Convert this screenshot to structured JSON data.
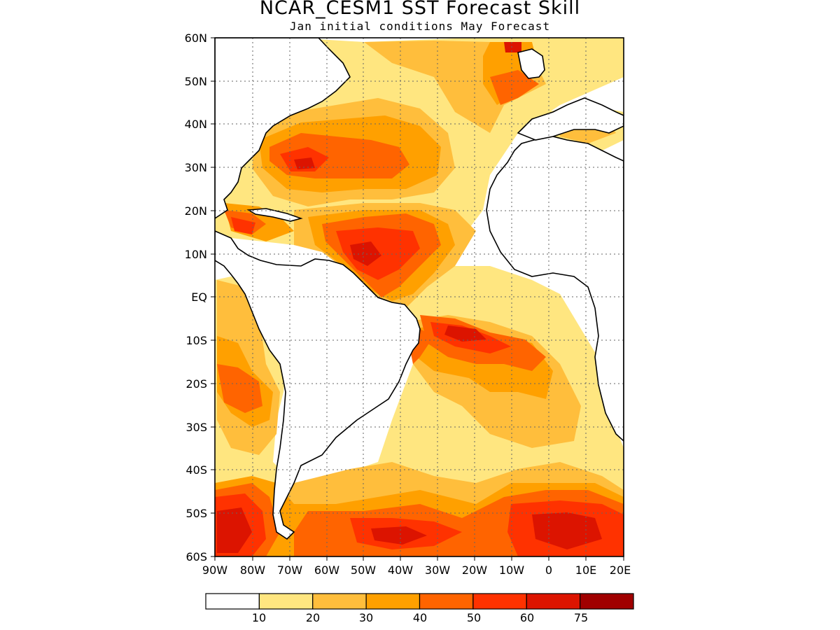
{
  "title": "NCAR_CESM1 SST Forecast Skill",
  "subtitle": "Jan initial conditions   May Forecast",
  "map": {
    "lon_range": [
      -90,
      20
    ],
    "lat_range": [
      -60,
      60
    ],
    "grid": "dotted",
    "lat_ticks": [
      "60N",
      "50N",
      "40N",
      "30N",
      "20N",
      "10N",
      "EQ",
      "10S",
      "20S",
      "30S",
      "40S",
      "50S",
      "60S"
    ],
    "lon_ticks": [
      "90W",
      "80W",
      "70W",
      "60W",
      "50W",
      "40W",
      "30W",
      "20W",
      "10W",
      "0",
      "10E",
      "20E"
    ],
    "variable": "SST forecast skill"
  },
  "colorbar": {
    "labels": [
      "10",
      "20",
      "30",
      "40",
      "50",
      "60",
      "75"
    ],
    "colors": [
      "#ffffff",
      "#ffe680",
      "#ffbe3c",
      "#ffa000",
      "#ff6400",
      "#ff3200",
      "#dc1400",
      "#a00000"
    ]
  }
}
